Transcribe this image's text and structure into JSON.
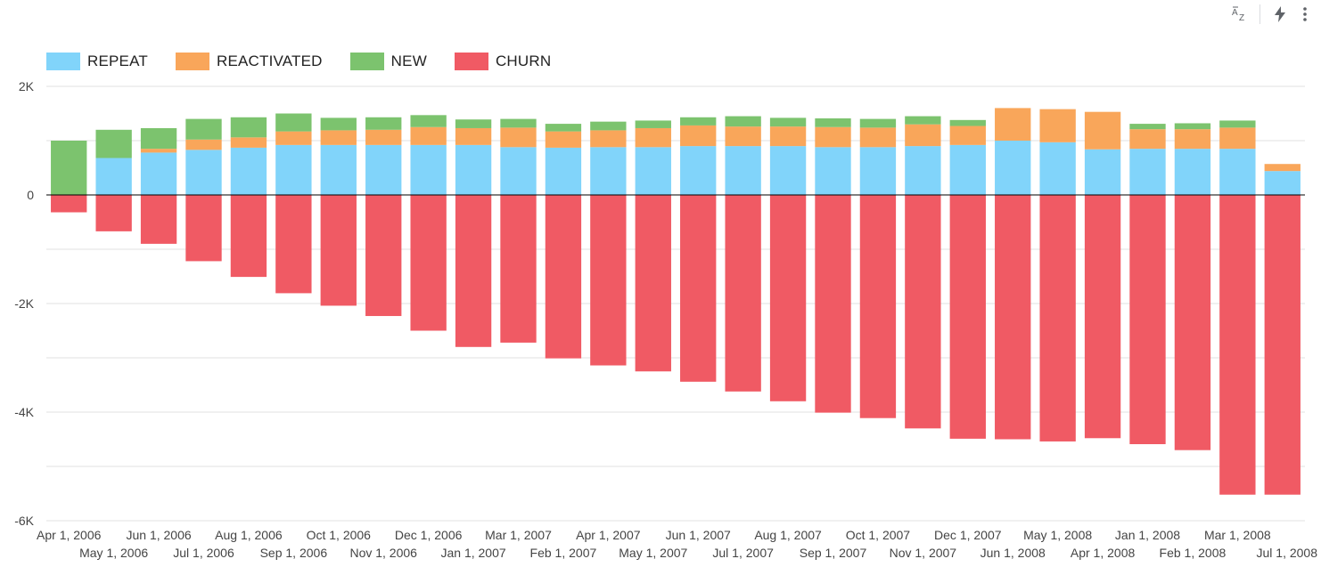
{
  "toolbar": {
    "sort_icon": "sort-az-icon",
    "quick_icon": "lightning-icon",
    "menu_icon": "more-vert-icon"
  },
  "chart_data": {
    "type": "bar",
    "stacked": true,
    "title": "",
    "xlabel": "",
    "ylabel": "",
    "ylim": [
      -6000,
      2000
    ],
    "yticks": [
      2000,
      0,
      -2000,
      -4000,
      -6000
    ],
    "ytick_labels": [
      "2K",
      "0",
      "-2K",
      "-4K",
      "-6K"
    ],
    "grid": true,
    "legend_position": "top-left",
    "categories": [
      "Apr 1, 2006",
      "May 1, 2006",
      "Jun 1, 2006",
      "Jul 1, 2006",
      "Aug 1, 2006",
      "Sep 1, 2006",
      "Oct 1, 2006",
      "Nov 1, 2006",
      "Dec 1, 2006",
      "Jan 1, 2007",
      "Mar 1, 2007",
      "Feb 1, 2007",
      "Apr 1, 2007",
      "May 1, 2007",
      "Jun 1, 2007",
      "Jul 1, 2007",
      "Aug 1, 2007",
      "Sep 1, 2007",
      "Oct 1, 2007",
      "Nov 1, 2007",
      "Dec 1, 2007",
      "Jun 1, 2008",
      "May 1, 2008",
      "Apr 1, 2008",
      "Jan 1, 2008",
      "Feb 1, 2008",
      "Mar 1, 2008",
      "Jul 1, 2008"
    ],
    "series": [
      {
        "name": "REPEAT",
        "color": "#81d4fa",
        "values": [
          0,
          680,
          780,
          830,
          870,
          920,
          920,
          920,
          920,
          920,
          880,
          870,
          880,
          880,
          900,
          900,
          900,
          880,
          880,
          900,
          920,
          1000,
          970,
          840,
          850,
          850,
          850,
          440
        ]
      },
      {
        "name": "REACTIVATED",
        "color": "#f9a65a",
        "values": [
          0,
          0,
          70,
          190,
          190,
          250,
          270,
          280,
          330,
          310,
          360,
          300,
          310,
          350,
          380,
          360,
          360,
          370,
          360,
          400,
          350,
          600,
          610,
          690,
          360,
          360,
          390,
          130
        ]
      },
      {
        "name": "NEW",
        "color": "#7cc36e",
        "values": [
          1000,
          520,
          380,
          380,
          370,
          330,
          230,
          230,
          220,
          160,
          160,
          140,
          160,
          140,
          150,
          190,
          160,
          160,
          160,
          150,
          110,
          0,
          0,
          0,
          100,
          110,
          130,
          0
        ]
      },
      {
        "name": "CHURN",
        "color": "#f05a64",
        "values": [
          -320,
          -670,
          -900,
          -1220,
          -1510,
          -1810,
          -2040,
          -2230,
          -2500,
          -2800,
          -2720,
          -3010,
          -3140,
          -3250,
          -3440,
          -3620,
          -3800,
          -4010,
          -4110,
          -4300,
          -4490,
          -4500,
          -4540,
          -4480,
          -4590,
          -4700,
          -5520,
          -5520
        ]
      }
    ]
  }
}
